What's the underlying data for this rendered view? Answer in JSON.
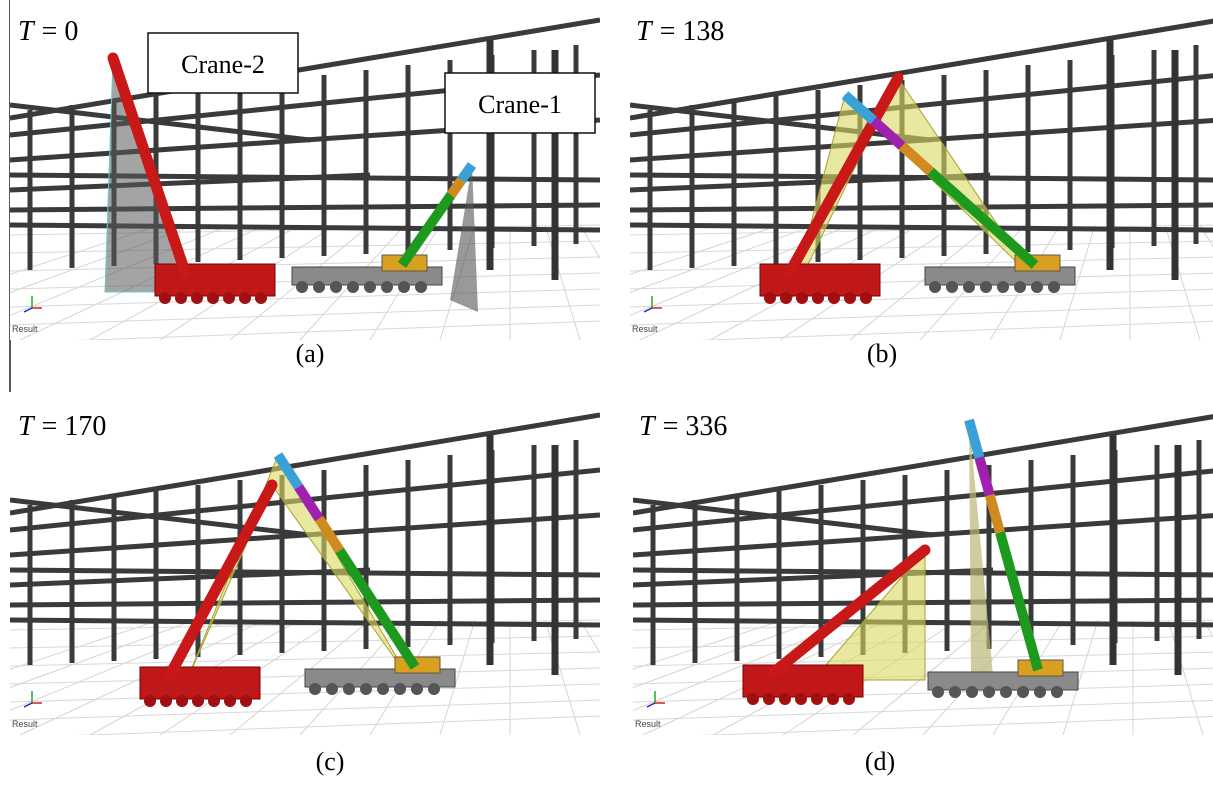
{
  "panels": [
    {
      "time": {
        "symbol": "T",
        "value": "= 0"
      },
      "caption": "(a)",
      "watermark": "Result",
      "callouts": [
        "Crane-2",
        "Crane-1"
      ]
    },
    {
      "time": {
        "symbol": "T",
        "value": "= 138"
      },
      "caption": "(b)",
      "watermark": "Result"
    },
    {
      "time": {
        "symbol": "T",
        "value": "= 170"
      },
      "caption": "(c)",
      "watermark": "Result"
    },
    {
      "time": {
        "symbol": "T",
        "value": "= 336"
      },
      "caption": "(d)",
      "watermark": "Result"
    }
  ]
}
